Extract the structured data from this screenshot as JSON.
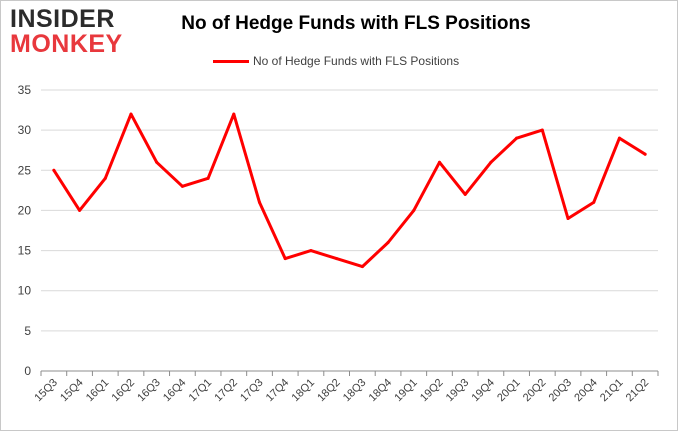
{
  "logo": {
    "line1": "INSIDER",
    "line2": "MONKEY"
  },
  "chart_data": {
    "type": "line",
    "title": "No of Hedge Funds with FLS Positions",
    "xlabel": "",
    "ylabel": "",
    "ylim": [
      0,
      35
    ],
    "yticks": [
      0,
      5,
      10,
      15,
      20,
      25,
      30,
      35
    ],
    "grid": true,
    "legend_position": "top",
    "categories": [
      "15Q3",
      "15Q4",
      "16Q1",
      "16Q2",
      "16Q3",
      "16Q4",
      "17Q1",
      "17Q2",
      "17Q3",
      "17Q4",
      "18Q1",
      "18Q2",
      "18Q3",
      "18Q4",
      "19Q1",
      "19Q2",
      "19Q3",
      "19Q4",
      "20Q1",
      "20Q2",
      "20Q3",
      "20Q4",
      "21Q1",
      "21Q2"
    ],
    "series": [
      {
        "name": "No of Hedge Funds with FLS Positions",
        "color": "#ff0000",
        "values": [
          25,
          20,
          24,
          32,
          26,
          23,
          24,
          32,
          21,
          14,
          15,
          14,
          13,
          16,
          20,
          26,
          22,
          26,
          29,
          30,
          19,
          21,
          29,
          27
        ]
      }
    ]
  }
}
